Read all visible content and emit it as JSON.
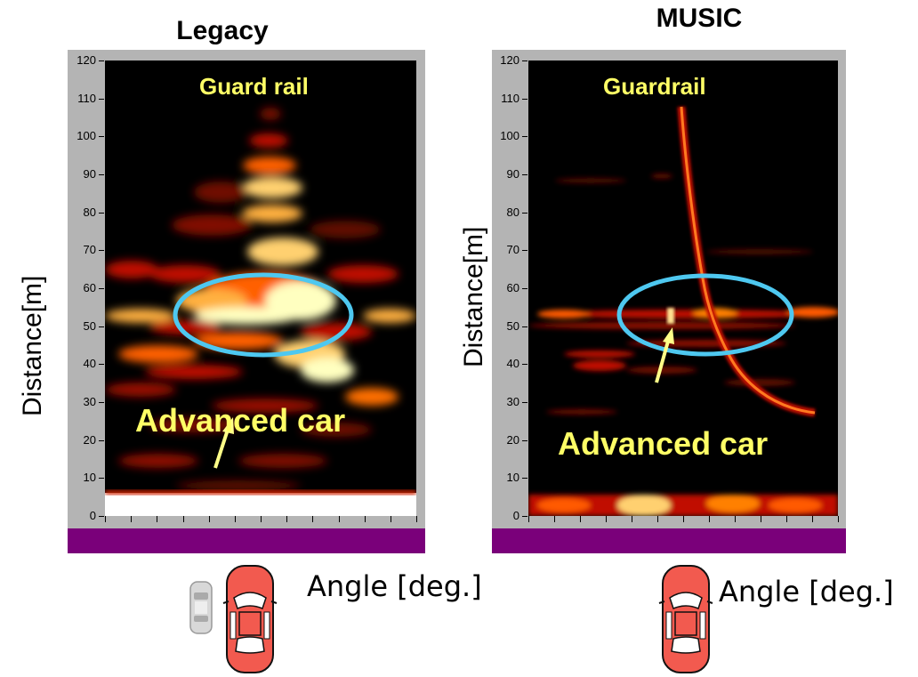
{
  "chart_data": [
    {
      "type": "heatmap",
      "title": "Legacy",
      "ylabel": "Distance[m]",
      "xlabel": "Angle [deg.]",
      "ylim": [
        0,
        120
      ],
      "yticks": [
        0,
        10,
        20,
        30,
        40,
        50,
        60,
        70,
        80,
        90,
        100,
        110,
        120
      ],
      "annotations": [
        {
          "text": "Guard rail",
          "at_distance": 113
        },
        {
          "text": "Advanced car",
          "at_distance": 25
        }
      ],
      "highlight": {
        "shape": "ellipse",
        "color": "#4ec8f0",
        "center_distance": 52
      },
      "colormap": [
        "#000000",
        "#600000",
        "#c01000",
        "#ff5a00",
        "#ffb040",
        "#ffffc0",
        "#ffffff"
      ]
    },
    {
      "type": "heatmap",
      "title": "MUSIC",
      "ylabel": "Distance[m]",
      "xlabel": "Angle [deg.]",
      "ylim": [
        0,
        120
      ],
      "yticks": [
        0,
        10,
        20,
        30,
        40,
        50,
        60,
        70,
        80,
        90,
        100,
        110,
        120
      ],
      "annotations": [
        {
          "text": "Guardrail",
          "at_distance": 113
        },
        {
          "text": "Advanced car",
          "at_distance": 19
        }
      ],
      "highlight": {
        "shape": "ellipse",
        "color": "#4ec8f0",
        "center_distance": 52
      },
      "colormap": [
        "#000000",
        "#600000",
        "#c01000",
        "#ff5a00",
        "#ffb040",
        "#ffffc0",
        "#ffffff"
      ]
    }
  ],
  "icons": {
    "own_car": "red-car-icon",
    "other_car": "gray-car-icon"
  }
}
